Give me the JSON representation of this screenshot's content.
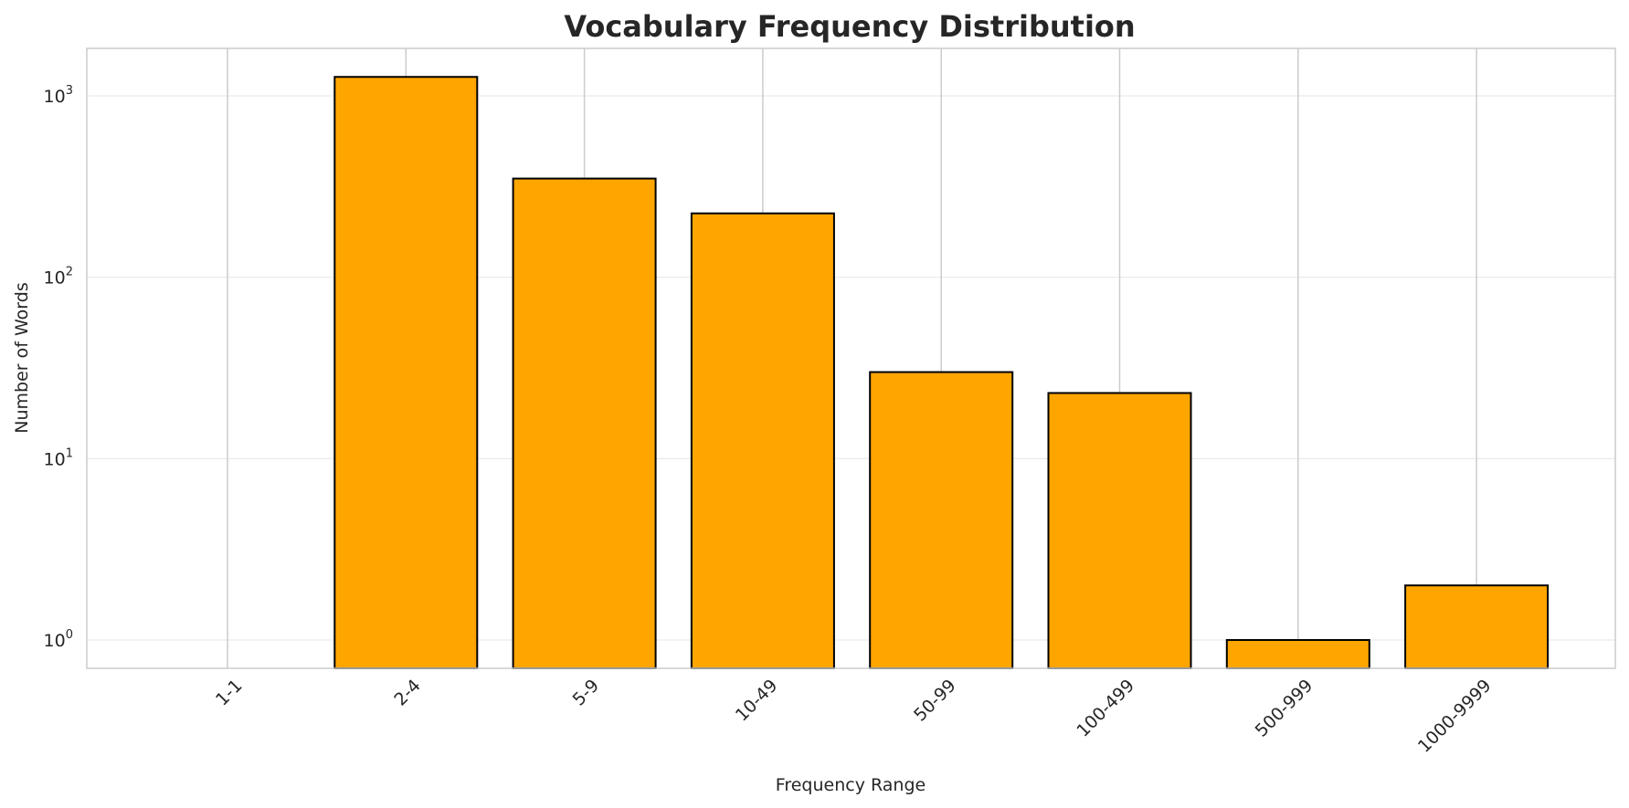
{
  "chart_data": {
    "type": "bar",
    "title": "Vocabulary Frequency Distribution",
    "xlabel": "Frequency Range",
    "ylabel": "Number of Words",
    "yscale": "log",
    "ylim": [
      0.7,
      1800
    ],
    "categories": [
      "1-1",
      "2-4",
      "5-9",
      "10-49",
      "50-99",
      "100-499",
      "500-999",
      "1000-9999"
    ],
    "values": [
      0,
      1272,
      350,
      225,
      30,
      23,
      1,
      2
    ],
    "yticks": [
      {
        "base": "10",
        "exp": "0",
        "value": 1
      },
      {
        "base": "10",
        "exp": "1",
        "value": 10
      },
      {
        "base": "10",
        "exp": "2",
        "value": 100
      },
      {
        "base": "10",
        "exp": "3",
        "value": 1000
      }
    ],
    "bar_color": "#FFA500",
    "edge_color": "#000000",
    "grid": true,
    "xtick_rotation": -45
  }
}
